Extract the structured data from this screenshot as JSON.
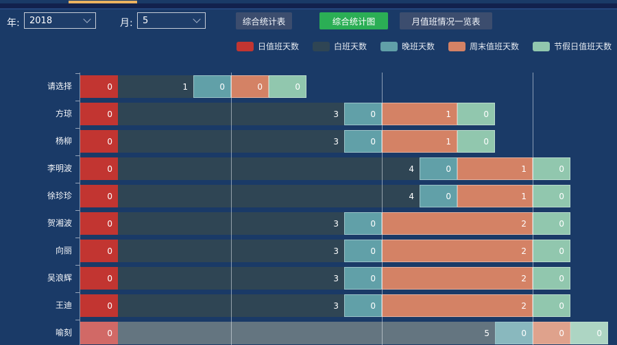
{
  "header": {
    "year_label": "年:",
    "year_value": "2018",
    "month_label": "月:",
    "month_value": "5",
    "buttons": [
      {
        "label": "综合统计表",
        "active": false
      },
      {
        "label": "综合统计图",
        "active": true
      },
      {
        "label": "月值班情况一览表",
        "active": false
      }
    ]
  },
  "colors": {
    "background": "#1a3a67",
    "top_strip": "#ecb260",
    "button": "#3c4d6e",
    "button_active": "#2bae55",
    "series": [
      "#c23531",
      "#2f4554",
      "#61a0a8",
      "#d48265",
      "#91c7ae"
    ]
  },
  "chart_data": {
    "type": "bar",
    "orientation": "horizontal",
    "stacked": true,
    "title": "",
    "xlabel": "",
    "ylabel": "",
    "categories": [
      "请选择",
      "方琼",
      "杨柳",
      "李明波",
      "徐珍珍",
      "贺湘波",
      "向丽",
      "吴浪辉",
      "王迪",
      "喻刻"
    ],
    "series": [
      {
        "name": "日值班天数",
        "color": "#c23531",
        "values": [
          0,
          0,
          0,
          0,
          0,
          0,
          0,
          0,
          0,
          0
        ]
      },
      {
        "name": "白班天数",
        "color": "#2f4554",
        "values": [
          1,
          3,
          3,
          4,
          4,
          3,
          3,
          3,
          3,
          5
        ]
      },
      {
        "name": "晚班天数",
        "color": "#61a0a8",
        "values": [
          0,
          0,
          0,
          0,
          0,
          0,
          0,
          0,
          0,
          0
        ]
      },
      {
        "name": "周末值班天数",
        "color": "#d48265",
        "values": [
          0,
          1,
          1,
          1,
          1,
          2,
          2,
          2,
          2,
          0
        ]
      },
      {
        "name": "节假日值班天数",
        "color": "#91c7ae",
        "values": [
          0,
          0,
          0,
          0,
          0,
          0,
          0,
          0,
          0,
          0
        ]
      }
    ],
    "x_gridlines": [
      2,
      4,
      6
    ],
    "xlim": [
      0,
      7
    ],
    "grid_over_bars": true,
    "value_labels": "inside-right",
    "zero_segments_shown_as_half_unit": true,
    "legend_position": "top",
    "highlighted_category": "喻刻"
  }
}
